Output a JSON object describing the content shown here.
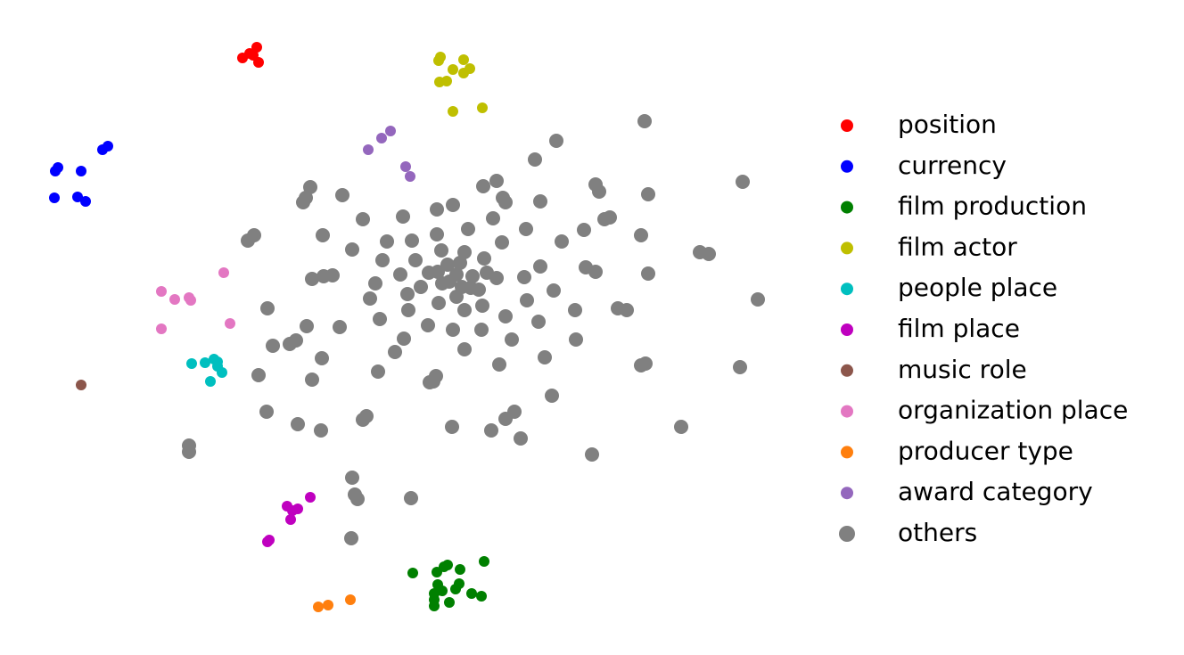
{
  "chart_data": {
    "type": "scatter",
    "legend": "right",
    "xlim": [
      0,
      900
    ],
    "ylim": [
      735,
      0
    ],
    "series": [
      {
        "name": "position",
        "color": "#ff0000",
        "size": 6,
        "x": [
          272,
          280,
          288,
          290,
          284
        ],
        "y": [
          65,
          60,
          53,
          70,
          62
        ]
      },
      {
        "name": "currency",
        "color": "#0000ff",
        "size": 6,
        "x": [
          62,
          65,
          91,
          61,
          87,
          96,
          115,
          121
        ],
        "y": [
          192,
          188,
          192,
          222,
          221,
          226,
          168,
          164
        ]
      },
      {
        "name": "film production",
        "color": "#008000",
        "size": 6,
        "x": [
          463,
          490,
          498,
          502,
          516,
          543,
          491,
          515,
          496,
          511,
          487,
          487,
          504,
          529,
          540,
          487
        ],
        "y": [
          643,
          642,
          636,
          634,
          639,
          630,
          656,
          655,
          663,
          661,
          666,
          680,
          676,
          666,
          669,
          673
        ]
      },
      {
        "name": "film actor",
        "color": "#bfbf00",
        "size": 6,
        "x": [
          492,
          494,
          520,
          508,
          520,
          527,
          493,
          501,
          508,
          541
        ],
        "y": [
          68,
          64,
          67,
          78,
          82,
          77,
          92,
          91,
          125,
          121
        ]
      },
      {
        "name": "people place",
        "color": "#00bfbf",
        "size": 6,
        "x": [
          215,
          230,
          240,
          244,
          244,
          249,
          236
        ],
        "y": [
          408,
          407,
          403,
          406,
          411,
          418,
          428
        ]
      },
      {
        "name": "film place",
        "color": "#bf00bf",
        "size": 6,
        "x": [
          348,
          322,
          334,
          326,
          302,
          300,
          328
        ],
        "y": [
          558,
          568,
          571,
          583,
          606,
          608,
          573
        ]
      },
      {
        "name": "music role",
        "color": "#8c564b",
        "size": 6,
        "x": [
          91
        ],
        "y": [
          432
        ]
      },
      {
        "name": "organization place",
        "color": "#e377c2",
        "size": 6,
        "x": [
          251,
          181,
          196,
          212,
          214,
          258,
          181
        ],
        "y": [
          306,
          327,
          336,
          334,
          337,
          363,
          369
        ]
      },
      {
        "name": "producer type",
        "color": "#ff7f0e",
        "size": 6,
        "x": [
          357,
          368,
          393
        ],
        "y": [
          681,
          679,
          673
        ]
      },
      {
        "name": "award category",
        "color": "#9467bd",
        "size": 6,
        "x": [
          413,
          428,
          438,
          455,
          460
        ],
        "y": [
          168,
          155,
          147,
          187,
          198
        ]
      },
      {
        "name": "others",
        "color": "#808080",
        "size": 8,
        "x": [
          723,
          624,
          600,
          557,
          542,
          564,
          567,
          606,
          668,
          672,
          727,
          833,
          348,
          343,
          340,
          384,
          407,
          452,
          490,
          508,
          553,
          590,
          655,
          678,
          684,
          719,
          785,
          795,
          850,
          278,
          285,
          362,
          395,
          434,
          462,
          490,
          525,
          563,
          630,
          495,
          521,
          543,
          429,
          466,
          502,
          516,
          606,
          657,
          668,
          727,
          350,
          363,
          373,
          449,
          481,
          491,
          512,
          530,
          546,
          557,
          588,
          421,
          472,
          496,
          504,
          518,
          528,
          537,
          621,
          415,
          457,
          492,
          512,
          591,
          458,
          521,
          541,
          645,
          693,
          703,
          300,
          426,
          480,
          508,
          567,
          604,
          344,
          381,
          540,
          453,
          574,
          646,
          306,
          325,
          332,
          443,
          521,
          361,
          611,
          719,
          724,
          830,
          290,
          350,
          424,
          489,
          486,
          482,
          560,
          619,
          299,
          411,
          407,
          567,
          577,
          334,
          360,
          507,
          551,
          584,
          764,
          212,
          212,
          664,
          395,
          398,
          401,
          461,
          394
        ],
        "y": [
          136,
          158,
          179,
          203,
          209,
          222,
          227,
          226,
          207,
          215,
          218,
          204,
          210,
          222,
          227,
          219,
          246,
          243,
          235,
          230,
          245,
          257,
          258,
          246,
          244,
          264,
          283,
          285,
          336,
          270,
          264,
          264,
          280,
          271,
          270,
          263,
          257,
          272,
          271,
          281,
          283,
          290,
          292,
          292,
          297,
          295,
          299,
          300,
          305,
          307,
          313,
          310,
          309,
          308,
          306,
          305,
          308,
          310,
          306,
          312,
          311,
          318,
          322,
          318,
          316,
          322,
          323,
          325,
          326,
          335,
          330,
          340,
          333,
          337,
          348,
          348,
          343,
          348,
          346,
          348,
          346,
          358,
          365,
          370,
          355,
          361,
          366,
          367,
          370,
          380,
          381,
          381,
          388,
          386,
          382,
          395,
          392,
          402,
          401,
          410,
          408,
          412,
          421,
          426,
          417,
          422,
          428,
          429,
          409,
          444,
          462,
          467,
          471,
          470,
          462,
          476,
          483,
          479,
          483,
          492,
          479,
          500,
          507,
          510,
          536,
          555,
          560,
          559,
          604
        ]
      }
    ]
  }
}
